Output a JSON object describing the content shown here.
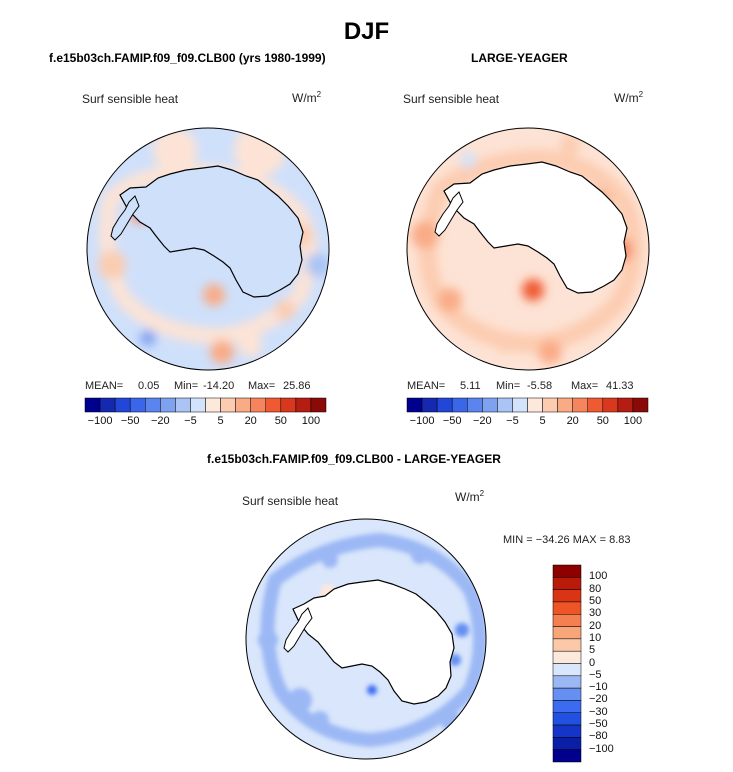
{
  "title": "DJF",
  "panels": {
    "left": {
      "title": "f.e15b03ch.FAMIP.f09_f09.CLB00 (yrs 1980-1999)",
      "variable": "Surf sensible heat",
      "units": "W/m",
      "units_sup": "2",
      "mean_label": "MEAN=",
      "mean": "0.05",
      "min_label": "Min=",
      "min": "-14.20",
      "max_label": "Max=",
      "max": "25.86"
    },
    "right": {
      "title": "LARGE-YEAGER",
      "variable": "Surf sensible heat",
      "units": "W/m",
      "units_sup": "2",
      "mean_label": "MEAN=",
      "mean": "5.11",
      "min_label": "Min=",
      "min": "-5.58",
      "max_label": "Max=",
      "max": "41.33"
    },
    "diff": {
      "title": "f.e15b03ch.FAMIP.f09_f09.CLB00 - LARGE-YEAGER",
      "variable": "Surf sensible heat",
      "units": "W/m",
      "units_sup": "2",
      "stats": "MIN = −34.26 MAX =    8.83"
    }
  },
  "chart_data": [
    {
      "type": "heatmap",
      "title": "f.e15b03ch.FAMIP.f09_f09.CLB00 (yrs 1980-1999)",
      "subtitle": "Surf sensible heat (W/m2), DJF, polar stereographic south",
      "colorbar": {
        "levels": [
          -100,
          -50,
          -20,
          -5,
          5,
          20,
          50,
          100
        ],
        "tick_labels": [
          "−100",
          "−50",
          "−20",
          "−5",
          "5",
          "20",
          "50",
          "100"
        ],
        "colors": [
          "#00008f",
          "#1528b0",
          "#2246d8",
          "#3c66ea",
          "#5b84ef",
          "#7fa2f0",
          "#a9c4f5",
          "#d2e3fb",
          "#fde8dc",
          "#fcccb0",
          "#f9ab86",
          "#f6845c",
          "#ef5a33",
          "#d9381f",
          "#b51d12",
          "#8a0a08"
        ]
      },
      "mean": 0.05,
      "min": -14.2,
      "max": 25.86
    },
    {
      "type": "heatmap",
      "title": "LARGE-YEAGER",
      "subtitle": "Surf sensible heat (W/m2), DJF, polar stereographic south",
      "colorbar": {
        "levels": [
          -100,
          -50,
          -20,
          -5,
          5,
          20,
          50,
          100
        ],
        "tick_labels": [
          "−100",
          "−50",
          "−20",
          "−5",
          "5",
          "20",
          "50",
          "100"
        ],
        "colors": [
          "#00008f",
          "#1528b0",
          "#2246d8",
          "#3c66ea",
          "#5b84ef",
          "#7fa2f0",
          "#a9c4f5",
          "#d2e3fb",
          "#fde8dc",
          "#fcccb0",
          "#f9ab86",
          "#f6845c",
          "#ef5a33",
          "#d9381f",
          "#b51d12",
          "#8a0a08"
        ]
      },
      "mean": 5.11,
      "min": -5.58,
      "max": 41.33
    },
    {
      "type": "heatmap",
      "title": "f.e15b03ch.FAMIP.f09_f09.CLB00 - LARGE-YEAGER",
      "subtitle": "Surf sensible heat (W/m2), DJF difference",
      "colorbar": {
        "levels": [
          -100,
          -80,
          -50,
          -30,
          -20,
          -10,
          -5,
          0,
          5,
          10,
          20,
          30,
          50,
          80,
          100
        ],
        "tick_labels": [
          "−100",
          "−80",
          "−50",
          "−30",
          "−20",
          "−10",
          "−5",
          "0",
          "5",
          "10",
          "20",
          "30",
          "50",
          "80",
          "100"
        ],
        "colors": [
          "#00008c",
          "#0a1ea8",
          "#1435c8",
          "#2250e0",
          "#3b6bf0",
          "#6590f2",
          "#9bb8f5",
          "#d9e6fb",
          "#fde8dc",
          "#fcc9a8",
          "#f9a57a",
          "#f57f4f",
          "#ee5526",
          "#d93515",
          "#b91a0a",
          "#8c0000"
        ]
      },
      "min": -34.26,
      "max": 8.83
    }
  ]
}
